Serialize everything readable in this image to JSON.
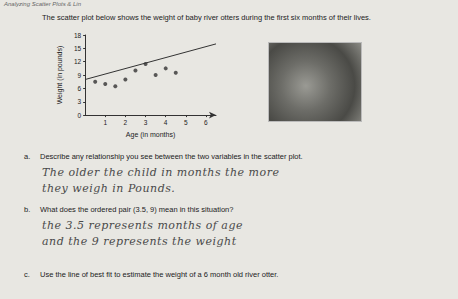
{
  "header": {
    "title": "Analyzing Scatter Plots & Lin"
  },
  "intro": "The scatter plot below shows the weight of baby river otters during the first six months of their lives.",
  "chart_data": {
    "type": "scatter",
    "x_label": "Age (in months)",
    "y_label": "Weight (in pounds)",
    "x": [
      0.5,
      1,
      1.5,
      2,
      2.5,
      3,
      3.5,
      4,
      4.5
    ],
    "values": [
      7.5,
      7,
      6.5,
      8,
      10,
      11.5,
      9,
      10.5,
      9.5
    ],
    "fit_line": {
      "x": [
        0,
        6.5
      ],
      "values": [
        8,
        16
      ]
    },
    "color": "#333333",
    "xlim": [
      0,
      6.5
    ],
    "xticks": [
      1,
      2,
      3,
      4,
      5,
      6
    ],
    "ylim": [
      0,
      18
    ],
    "yticks": [
      0,
      3,
      6,
      9,
      12,
      15,
      18
    ],
    "grid": false
  },
  "questions": [
    {
      "label": "a.",
      "text": "Describe any relationship you see between the two variables in the scatter plot.",
      "answer": [
        "The older the child in months the more",
        "they weigh in Pounds."
      ]
    },
    {
      "label": "b.",
      "text": "What does the ordered pair (3.5, 9) mean in this situation?",
      "answer": [
        "the 3.5 represents months of age",
        "and the 9 represents the weight"
      ]
    },
    {
      "label": "c.",
      "text": "Use the line of best fit to estimate the weight of a 6 month old river otter.",
      "answer": []
    }
  ]
}
